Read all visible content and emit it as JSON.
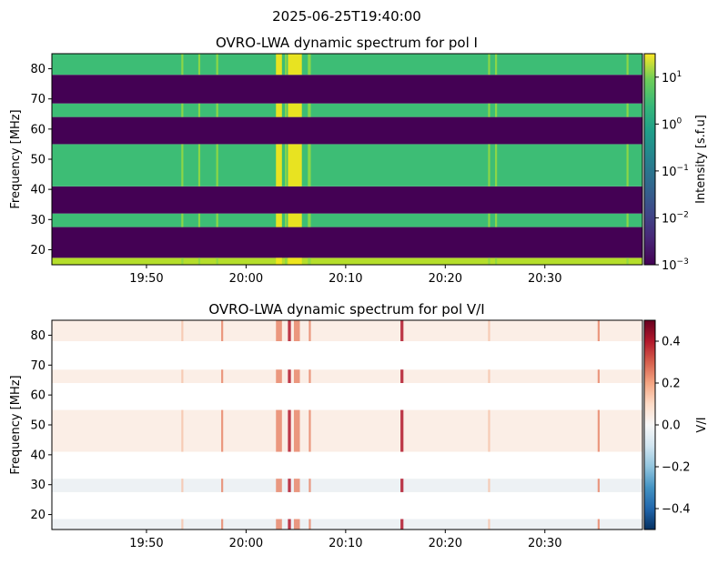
{
  "figure": {
    "suptitle": "2025-06-25T19:40:00"
  },
  "colors": {
    "viridis_dark": "#440154",
    "viridis_green": "#3dbd75",
    "viridis_yellow": "#f1e51c",
    "viridis_lime": "#b5de2b",
    "rdbu_pale": "#fbeee6",
    "rdbu_grey": "#edf1f4",
    "axis": "#000000"
  },
  "chart_data": [
    {
      "type": "heatmap",
      "title": "OVRO-LWA dynamic spectrum for pol I",
      "ylabel": "Frequency [MHz]",
      "xlabel": "",
      "x_tick_labels": [
        "19:50",
        "20:00",
        "20:10",
        "20:20",
        "20:30"
      ],
      "x_tick_minutes": [
        50,
        60,
        70,
        80,
        90
      ],
      "xlim_minutes": [
        40.5,
        99.8
      ],
      "y_ticks": [
        20,
        30,
        40,
        50,
        60,
        70,
        80
      ],
      "ylim": [
        15,
        85
      ],
      "colorbar": {
        "label": "Intensity [s.f.u]",
        "scale": "log",
        "ticks": [
          "10^-3",
          "10^-2",
          "10^-1",
          "10^0",
          "10^1"
        ],
        "tick_exponents": [
          -3,
          -2,
          -1,
          0,
          1
        ],
        "range_exponents": [
          -3,
          1.5
        ]
      },
      "bands": [
        {
          "f0": 15,
          "f1": 17.3,
          "level": "high"
        },
        {
          "f0": 17.3,
          "f1": 27.5,
          "level": "masked"
        },
        {
          "f0": 27.5,
          "f1": 32,
          "level": "mid"
        },
        {
          "f0": 32,
          "f1": 41,
          "level": "masked"
        },
        {
          "f0": 41,
          "f1": 55,
          "level": "mid"
        },
        {
          "f0": 55,
          "f1": 64,
          "level": "masked"
        },
        {
          "f0": 64,
          "f1": 68.5,
          "level": "mid"
        },
        {
          "f0": 68.5,
          "f1": 78,
          "level": "masked"
        },
        {
          "f0": 78,
          "f1": 85,
          "level": "mid"
        }
      ],
      "bursts_minutes": [
        {
          "t0": 63.0,
          "t1": 63.6,
          "strength": "strong"
        },
        {
          "t0": 64.2,
          "t1": 65.6,
          "strength": "strong"
        },
        {
          "t0": 53.5,
          "t1": 53.7,
          "strength": "weak"
        },
        {
          "t0": 55.2,
          "t1": 55.4,
          "strength": "weak"
        },
        {
          "t0": 57.0,
          "t1": 57.2,
          "strength": "weak"
        },
        {
          "t0": 63.9,
          "t1": 64.1,
          "strength": "weak"
        },
        {
          "t0": 66.2,
          "t1": 66.5,
          "strength": "weak"
        },
        {
          "t0": 84.3,
          "t1": 84.5,
          "strength": "weak"
        },
        {
          "t0": 85.0,
          "t1": 85.2,
          "strength": "weak"
        },
        {
          "t0": 98.2,
          "t1": 98.4,
          "strength": "weak"
        }
      ]
    },
    {
      "type": "heatmap",
      "title": "OVRO-LWA dynamic spectrum for pol V/I",
      "ylabel": "Frequency [MHz]",
      "xlabel": "",
      "x_tick_labels": [
        "19:50",
        "20:00",
        "20:10",
        "20:20",
        "20:30"
      ],
      "x_tick_minutes": [
        50,
        60,
        70,
        80,
        90
      ],
      "xlim_minutes": [
        40.5,
        99.8
      ],
      "y_ticks": [
        20,
        30,
        40,
        50,
        60,
        70,
        80
      ],
      "ylim": [
        15,
        85
      ],
      "colorbar": {
        "label": "V/I",
        "scale": "linear",
        "ticks": [
          "−0.4",
          "−0.2",
          "0.0",
          "0.2",
          "0.4"
        ],
        "tick_values": [
          -0.4,
          -0.2,
          0.0,
          0.2,
          0.4
        ],
        "range": [
          -0.5,
          0.5
        ]
      },
      "bands": [
        {
          "f0": 15,
          "f1": 18.5,
          "level": "grey"
        },
        {
          "f0": 18.5,
          "f1": 27.5,
          "level": "masked"
        },
        {
          "f0": 27.5,
          "f1": 32,
          "level": "grey"
        },
        {
          "f0": 32,
          "f1": 41,
          "level": "masked"
        },
        {
          "f0": 41,
          "f1": 55,
          "level": "pale"
        },
        {
          "f0": 55,
          "f1": 64,
          "level": "masked"
        },
        {
          "f0": 64,
          "f1": 68.5,
          "level": "pale"
        },
        {
          "f0": 68.5,
          "f1": 78,
          "level": "masked"
        },
        {
          "f0": 78,
          "f1": 85,
          "level": "pale"
        }
      ],
      "bursts_minutes": [
        {
          "t0": 63.0,
          "t1": 63.6,
          "strength": "medium"
        },
        {
          "t0": 64.2,
          "t1": 64.5,
          "strength": "strong"
        },
        {
          "t0": 64.8,
          "t1": 65.4,
          "strength": "medium"
        },
        {
          "t0": 66.3,
          "t1": 66.5,
          "strength": "medium"
        },
        {
          "t0": 57.5,
          "t1": 57.7,
          "strength": "medium"
        },
        {
          "t0": 75.5,
          "t1": 75.8,
          "strength": "strong"
        },
        {
          "t0": 53.5,
          "t1": 53.7,
          "strength": "weak"
        },
        {
          "t0": 84.3,
          "t1": 84.5,
          "strength": "weak"
        },
        {
          "t0": 95.3,
          "t1": 95.5,
          "strength": "medium"
        }
      ]
    }
  ]
}
